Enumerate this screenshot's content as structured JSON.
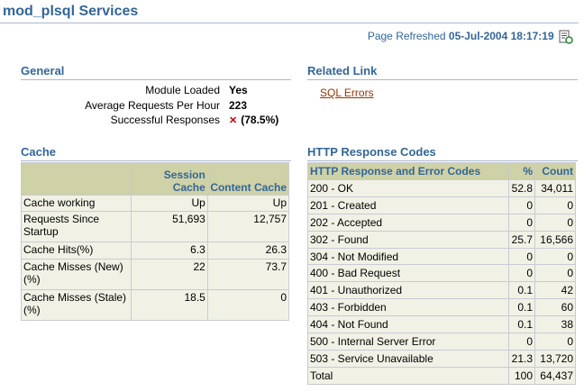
{
  "page": {
    "title": "mod_plsql Services",
    "refresh_label": "Page Refreshed",
    "refresh_time": "05-Jul-2004 18:17:19"
  },
  "general": {
    "heading": "General",
    "rows": [
      {
        "label": "Module Loaded",
        "value": "Yes"
      },
      {
        "label": "Average Requests Per Hour",
        "value": "223"
      },
      {
        "label": "Successful Responses",
        "value": "(78.5%)",
        "icon": "red-x-icon"
      }
    ]
  },
  "related": {
    "heading": "Related Link",
    "link": "SQL Errors"
  },
  "cache": {
    "heading": "Cache",
    "columns": [
      "",
      "Session Cache",
      "Content Cache"
    ],
    "rows": [
      {
        "label": "Cache working",
        "session": "Up",
        "content": "Up"
      },
      {
        "label": "Requests Since Startup",
        "session": "51,693",
        "content": "12,757"
      },
      {
        "label": "Cache Hits(%)",
        "session": "6.3",
        "content": "26.3"
      },
      {
        "label": "Cache Misses (New)(%)",
        "session": "22",
        "content": "73.7"
      },
      {
        "label": "Cache Misses (Stale)(%)",
        "session": "18.5",
        "content": "0"
      }
    ]
  },
  "http": {
    "heading": "HTTP Response Codes",
    "columns": [
      "HTTP Response and Error Codes",
      "%",
      "Count"
    ],
    "rows": [
      {
        "code": "200 - OK",
        "pct": "52.8",
        "count": "34,011"
      },
      {
        "code": "201 - Created",
        "pct": "0",
        "count": "0"
      },
      {
        "code": "202 - Accepted",
        "pct": "0",
        "count": "0"
      },
      {
        "code": "302 - Found",
        "pct": "25.7",
        "count": "16,566"
      },
      {
        "code": "304 - Not Modified",
        "pct": "0",
        "count": "0"
      },
      {
        "code": "400 - Bad Request",
        "pct": "0",
        "count": "0"
      },
      {
        "code": "401 - Unauthorized",
        "pct": "0.1",
        "count": "42"
      },
      {
        "code": "403 - Forbidden",
        "pct": "0.1",
        "count": "60"
      },
      {
        "code": "404 - Not Found",
        "pct": "0.1",
        "count": "38"
      },
      {
        "code": "500 - Internal Server Error",
        "pct": "0",
        "count": "0"
      },
      {
        "code": "503 - Service Unavailable",
        "pct": "21.3",
        "count": "13,720"
      },
      {
        "code": "Total",
        "pct": "100",
        "count": "64,437"
      }
    ]
  },
  "colors": {
    "heading": "#336699",
    "table_header_bg": "#cfd1a6",
    "table_cell_bg": "#f1f1e6",
    "link": "#993300",
    "error_icon": "#cc0000"
  }
}
